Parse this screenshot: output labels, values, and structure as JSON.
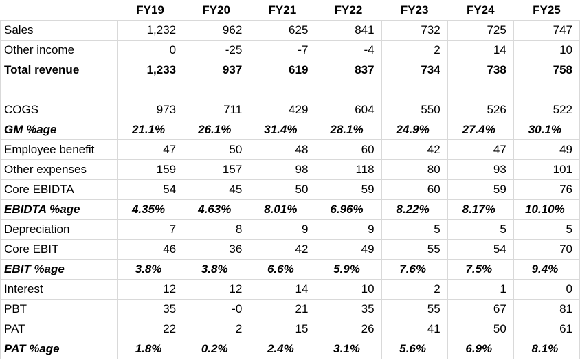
{
  "table": {
    "header": [
      "FY19",
      "FY20",
      "FY21",
      "FY22",
      "FY23",
      "FY24",
      "FY25"
    ],
    "rows": [
      [
        "Sales",
        "1,232",
        "962",
        "625",
        "841",
        "732",
        "725",
        "747"
      ],
      [
        "Other income",
        "0",
        "-25",
        "-7",
        "-4",
        "2",
        "14",
        "10"
      ],
      [
        "Total revenue",
        "1,233",
        "937",
        "619",
        "837",
        "734",
        "738",
        "758"
      ],
      [
        "COGS",
        "973",
        "711",
        "429",
        "604",
        "550",
        "526",
        "522"
      ],
      [
        "GM %age",
        "21.1%",
        "26.1%",
        "31.4%",
        "28.1%",
        "24.9%",
        "27.4%",
        "30.1%"
      ],
      [
        "Employee benefit",
        "47",
        "50",
        "48",
        "60",
        "42",
        "47",
        "49"
      ],
      [
        "Other expenses",
        "159",
        "157",
        "98",
        "118",
        "80",
        "93",
        "101"
      ],
      [
        "Core EBIDTA",
        "54",
        "45",
        "50",
        "59",
        "60",
        "59",
        "76"
      ],
      [
        "EBIDTA %age",
        "4.35%",
        "4.63%",
        "8.01%",
        "6.96%",
        "8.22%",
        "8.17%",
        "10.10%"
      ],
      [
        "Depreciation",
        "7",
        "8",
        "9",
        "9",
        "5",
        "5",
        "5"
      ],
      [
        "Core EBIT",
        "46",
        "36",
        "42",
        "49",
        "55",
        "54",
        "70"
      ],
      [
        "EBIT %age",
        "3.8%",
        "3.8%",
        "6.6%",
        "5.9%",
        "7.6%",
        "7.5%",
        "9.4%"
      ],
      [
        "Interest",
        "12",
        "12",
        "14",
        "10",
        "2",
        "1",
        "0"
      ],
      [
        "PBT",
        "35",
        "-0",
        "21",
        "35",
        "55",
        "67",
        "81"
      ],
      [
        "PAT",
        "22",
        "2",
        "15",
        "26",
        "41",
        "50",
        "61"
      ],
      [
        "PAT %age",
        "1.8%",
        "0.2%",
        "2.4%",
        "3.1%",
        "5.6%",
        "6.9%",
        "8.1%"
      ]
    ]
  }
}
